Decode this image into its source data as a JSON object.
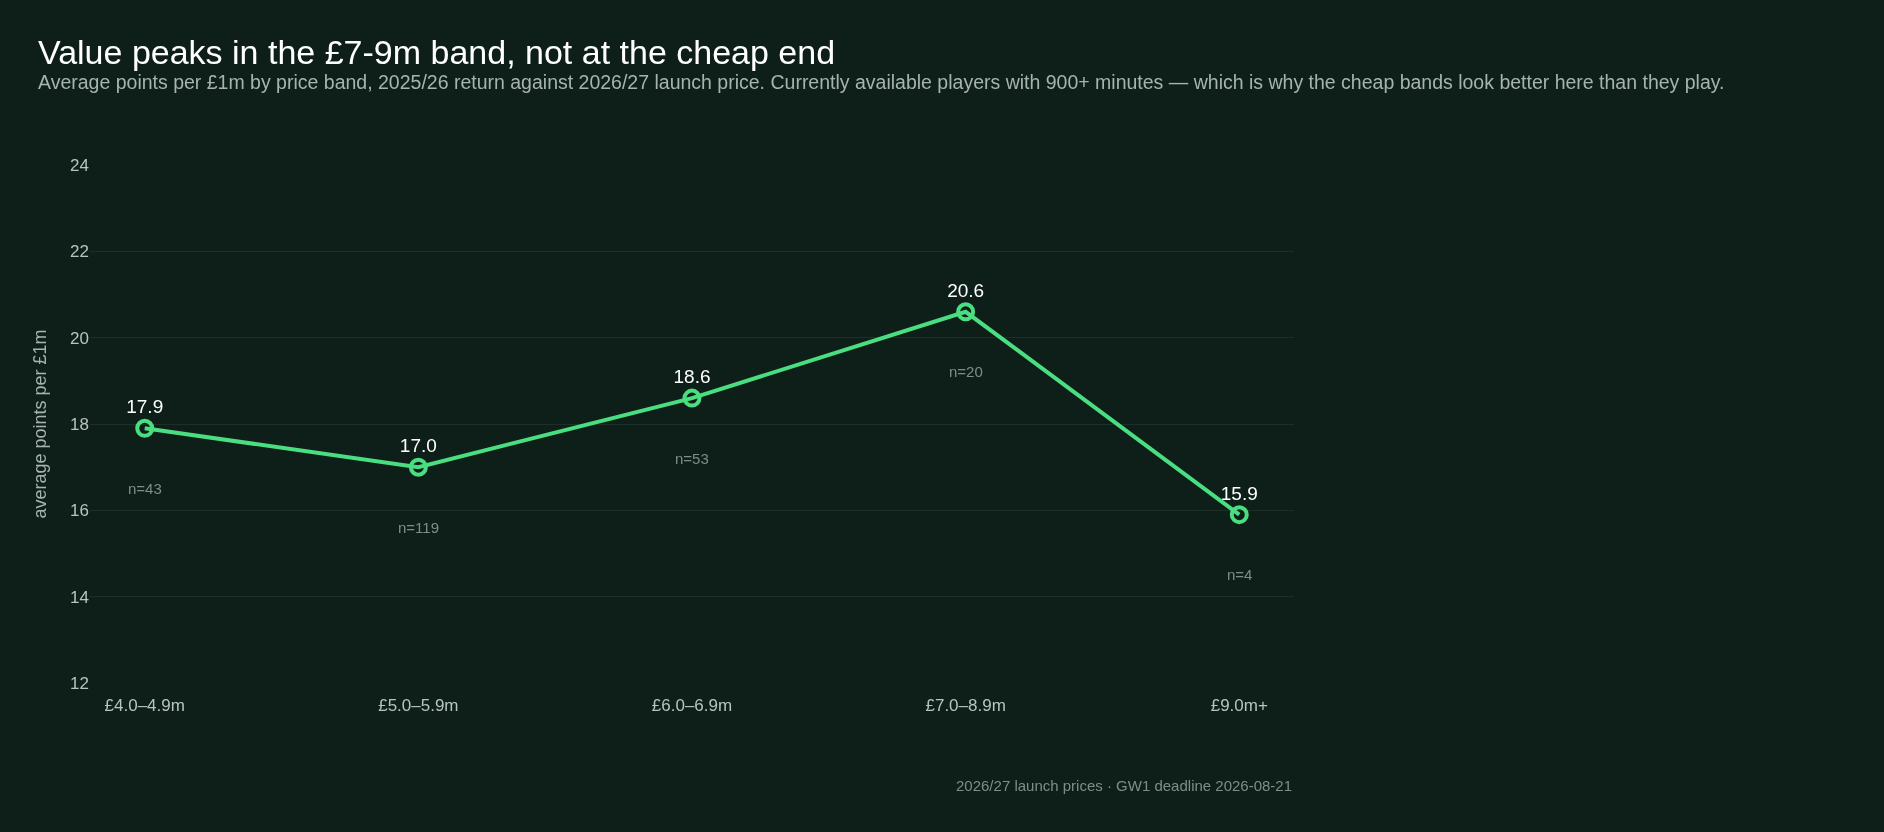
{
  "chart_data": {
    "type": "line",
    "title": "Value peaks in the £7-9m band, not at the cheap end",
    "subtitle": "Average points per £1m by price band, 2025/26 return against 2026/27 launch price. Currently available players with 900+ minutes — which is why the cheap bands look better here than they play.",
    "ylabel": "average points per £1m",
    "categories": [
      "£4.0–4.9m",
      "£5.0–5.9m",
      "£6.0–6.9m",
      "£7.0–8.9m",
      "£9.0m+"
    ],
    "series": [
      {
        "color": "#4ade80",
        "values": [
          17.9,
          17.0,
          18.6,
          20.6,
          15.9
        ]
      }
    ],
    "ylim": [
      12,
      24
    ],
    "yticks": [
      12,
      14,
      16,
      18,
      20,
      22,
      24
    ],
    "grid": "y",
    "marker": "circle",
    "line_style": "solid",
    "value_labels": [
      "17.9",
      "17.0",
      "18.6",
      "20.6",
      "15.9"
    ],
    "annotations": [
      "n=43",
      "n=119",
      "n=53",
      "n=20",
      "n=4",
      "2026/27 launch prices · GW1 deadline 2026-08-21"
    ]
  }
}
